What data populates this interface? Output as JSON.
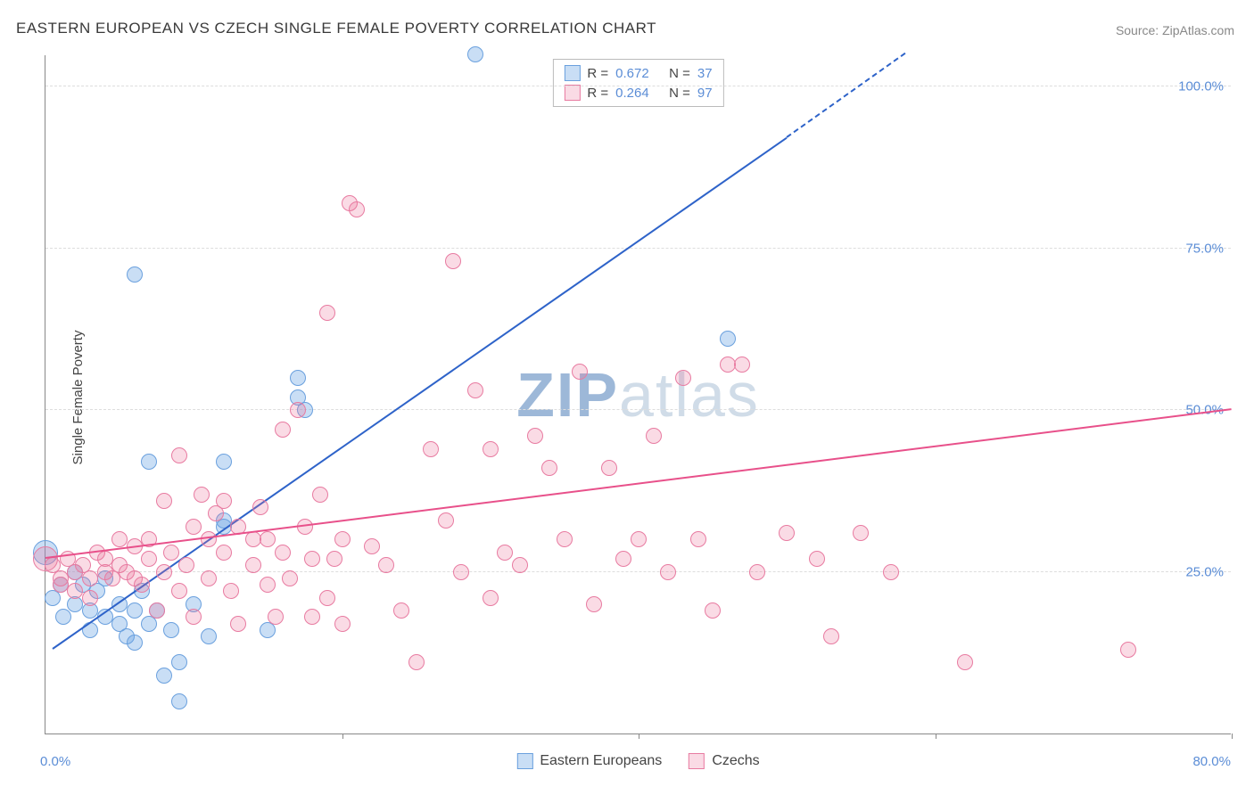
{
  "title": "EASTERN EUROPEAN VS CZECH SINGLE FEMALE POVERTY CORRELATION CHART",
  "source": "Source: ZipAtlas.com",
  "ylabel": "Single Female Poverty",
  "watermark": {
    "zip": "ZIP",
    "atlas": "atlas"
  },
  "chart": {
    "type": "scatter",
    "xlim": [
      0,
      80
    ],
    "ylim": [
      0,
      105
    ],
    "ytick_positions": [
      25,
      50,
      75,
      100
    ],
    "ytick_labels": [
      "25.0%",
      "50.0%",
      "75.0%",
      "100.0%"
    ],
    "ytick_color": "#5b8dd6",
    "xtick_marks": [
      20,
      40,
      60,
      80
    ],
    "x_left_label": "0.0%",
    "x_right_label": "80.0%",
    "x_label_color": "#5b8dd6",
    "grid_color": "#dddddd",
    "axis_color": "#888888",
    "background_color": "#ffffff",
    "point_radius": 9,
    "large_radius": 14,
    "series": [
      {
        "name": "Eastern Europeans",
        "fill_color": "rgba(100,160,225,0.35)",
        "stroke_color": "#6aa0de",
        "r_label": "R =",
        "r_value": "0.672",
        "n_label": "N =",
        "n_value": "37",
        "trend": {
          "x1": 0.5,
          "y1": 13,
          "x2": 50,
          "y2": 92,
          "color": "#2e63c9",
          "width": 2,
          "dashed_ext": {
            "x2": 58,
            "y2": 105
          }
        },
        "points": [
          {
            "x": 0,
            "y": 28,
            "r": 14
          },
          {
            "x": 0.5,
            "y": 21
          },
          {
            "x": 1,
            "y": 23
          },
          {
            "x": 1.2,
            "y": 18
          },
          {
            "x": 2,
            "y": 25
          },
          {
            "x": 2,
            "y": 20
          },
          {
            "x": 2.5,
            "y": 23
          },
          {
            "x": 3,
            "y": 19
          },
          {
            "x": 3,
            "y": 16
          },
          {
            "x": 3.5,
            "y": 22
          },
          {
            "x": 4,
            "y": 18
          },
          {
            "x": 4,
            "y": 24
          },
          {
            "x": 5,
            "y": 20
          },
          {
            "x": 5,
            "y": 17
          },
          {
            "x": 5.5,
            "y": 15
          },
          {
            "x": 6,
            "y": 19
          },
          {
            "x": 6,
            "y": 14
          },
          {
            "x": 6.5,
            "y": 22
          },
          {
            "x": 7,
            "y": 17
          },
          {
            "x": 7,
            "y": 42
          },
          {
            "x": 7.5,
            "y": 19
          },
          {
            "x": 8,
            "y": 9
          },
          {
            "x": 8.5,
            "y": 16
          },
          {
            "x": 9,
            "y": 11
          },
          {
            "x": 9,
            "y": 5
          },
          {
            "x": 10,
            "y": 20
          },
          {
            "x": 11,
            "y": 15
          },
          {
            "x": 12,
            "y": 42
          },
          {
            "x": 12,
            "y": 33
          },
          {
            "x": 12,
            "y": 32
          },
          {
            "x": 15,
            "y": 16
          },
          {
            "x": 17,
            "y": 52
          },
          {
            "x": 17,
            "y": 55
          },
          {
            "x": 17.5,
            "y": 50
          },
          {
            "x": 29,
            "y": 105
          },
          {
            "x": 46,
            "y": 61
          },
          {
            "x": 6,
            "y": 71
          }
        ]
      },
      {
        "name": "Czechs",
        "fill_color": "rgba(235,110,150,0.25)",
        "stroke_color": "#e87ba1",
        "r_label": "R =",
        "r_value": "0.264",
        "n_label": "N =",
        "n_value": "97",
        "trend": {
          "x1": 0,
          "y1": 27,
          "x2": 80,
          "y2": 50,
          "color": "#e8508a",
          "width": 2
        },
        "points": [
          {
            "x": 0.5,
            "y": 26
          },
          {
            "x": 1,
            "y": 24
          },
          {
            "x": 1,
            "y": 23
          },
          {
            "x": 1.5,
            "y": 27
          },
          {
            "x": 2,
            "y": 25
          },
          {
            "x": 2,
            "y": 22
          },
          {
            "x": 2.5,
            "y": 26
          },
          {
            "x": 3,
            "y": 24
          },
          {
            "x": 3,
            "y": 21
          },
          {
            "x": 3.5,
            "y": 28
          },
          {
            "x": 4,
            "y": 25
          },
          {
            "x": 4,
            "y": 27
          },
          {
            "x": 4.5,
            "y": 24
          },
          {
            "x": 5,
            "y": 26
          },
          {
            "x": 5,
            "y": 30
          },
          {
            "x": 5.5,
            "y": 25
          },
          {
            "x": 6,
            "y": 29
          },
          {
            "x": 6,
            "y": 24
          },
          {
            "x": 6.5,
            "y": 23
          },
          {
            "x": 7,
            "y": 27
          },
          {
            "x": 7,
            "y": 30
          },
          {
            "x": 7.5,
            "y": 19
          },
          {
            "x": 8,
            "y": 36
          },
          {
            "x": 8,
            "y": 25
          },
          {
            "x": 8.5,
            "y": 28
          },
          {
            "x": 9,
            "y": 22
          },
          {
            "x": 9,
            "y": 43
          },
          {
            "x": 9.5,
            "y": 26
          },
          {
            "x": 10,
            "y": 32
          },
          {
            "x": 10,
            "y": 18
          },
          {
            "x": 10.5,
            "y": 37
          },
          {
            "x": 11,
            "y": 30
          },
          {
            "x": 11,
            "y": 24
          },
          {
            "x": 11.5,
            "y": 34
          },
          {
            "x": 12,
            "y": 28
          },
          {
            "x": 12,
            "y": 36
          },
          {
            "x": 12.5,
            "y": 22
          },
          {
            "x": 13,
            "y": 32
          },
          {
            "x": 13,
            "y": 17
          },
          {
            "x": 14,
            "y": 26
          },
          {
            "x": 14,
            "y": 30
          },
          {
            "x": 14.5,
            "y": 35
          },
          {
            "x": 15,
            "y": 23
          },
          {
            "x": 15,
            "y": 30
          },
          {
            "x": 15.5,
            "y": 18
          },
          {
            "x": 16,
            "y": 47
          },
          {
            "x": 16,
            "y": 28
          },
          {
            "x": 16.5,
            "y": 24
          },
          {
            "x": 17,
            "y": 50
          },
          {
            "x": 17.5,
            "y": 32
          },
          {
            "x": 18,
            "y": 18
          },
          {
            "x": 18,
            "y": 27
          },
          {
            "x": 18.5,
            "y": 37
          },
          {
            "x": 19,
            "y": 21
          },
          {
            "x": 19,
            "y": 65
          },
          {
            "x": 19.5,
            "y": 27
          },
          {
            "x": 20,
            "y": 30
          },
          {
            "x": 20,
            "y": 17
          },
          {
            "x": 20.5,
            "y": 82
          },
          {
            "x": 21,
            "y": 81
          },
          {
            "x": 22,
            "y": 29
          },
          {
            "x": 23,
            "y": 26
          },
          {
            "x": 24,
            "y": 19
          },
          {
            "x": 25,
            "y": 11
          },
          {
            "x": 26,
            "y": 44
          },
          {
            "x": 27,
            "y": 33
          },
          {
            "x": 27.5,
            "y": 73
          },
          {
            "x": 28,
            "y": 25
          },
          {
            "x": 29,
            "y": 53
          },
          {
            "x": 30,
            "y": 21
          },
          {
            "x": 30,
            "y": 44
          },
          {
            "x": 31,
            "y": 28
          },
          {
            "x": 32,
            "y": 26
          },
          {
            "x": 33,
            "y": 46
          },
          {
            "x": 34,
            "y": 41
          },
          {
            "x": 35,
            "y": 30
          },
          {
            "x": 36,
            "y": 56
          },
          {
            "x": 37,
            "y": 20
          },
          {
            "x": 38,
            "y": 41
          },
          {
            "x": 39,
            "y": 27
          },
          {
            "x": 40,
            "y": 30
          },
          {
            "x": 41,
            "y": 46
          },
          {
            "x": 42,
            "y": 25
          },
          {
            "x": 43,
            "y": 55
          },
          {
            "x": 44,
            "y": 30
          },
          {
            "x": 45,
            "y": 19
          },
          {
            "x": 46,
            "y": 57
          },
          {
            "x": 47,
            "y": 57
          },
          {
            "x": 48,
            "y": 25
          },
          {
            "x": 50,
            "y": 31
          },
          {
            "x": 52,
            "y": 27
          },
          {
            "x": 53,
            "y": 15
          },
          {
            "x": 55,
            "y": 31
          },
          {
            "x": 57,
            "y": 25
          },
          {
            "x": 62,
            "y": 11
          },
          {
            "x": 73,
            "y": 13
          },
          {
            "x": 0,
            "y": 27,
            "r": 14
          }
        ]
      }
    ]
  },
  "legend_bottom": [
    {
      "swatch_fill": "rgba(100,160,225,0.35)",
      "swatch_stroke": "#6aa0de",
      "label": "Eastern Europeans"
    },
    {
      "swatch_fill": "rgba(235,110,150,0.25)",
      "swatch_stroke": "#e87ba1",
      "label": "Czechs"
    }
  ]
}
